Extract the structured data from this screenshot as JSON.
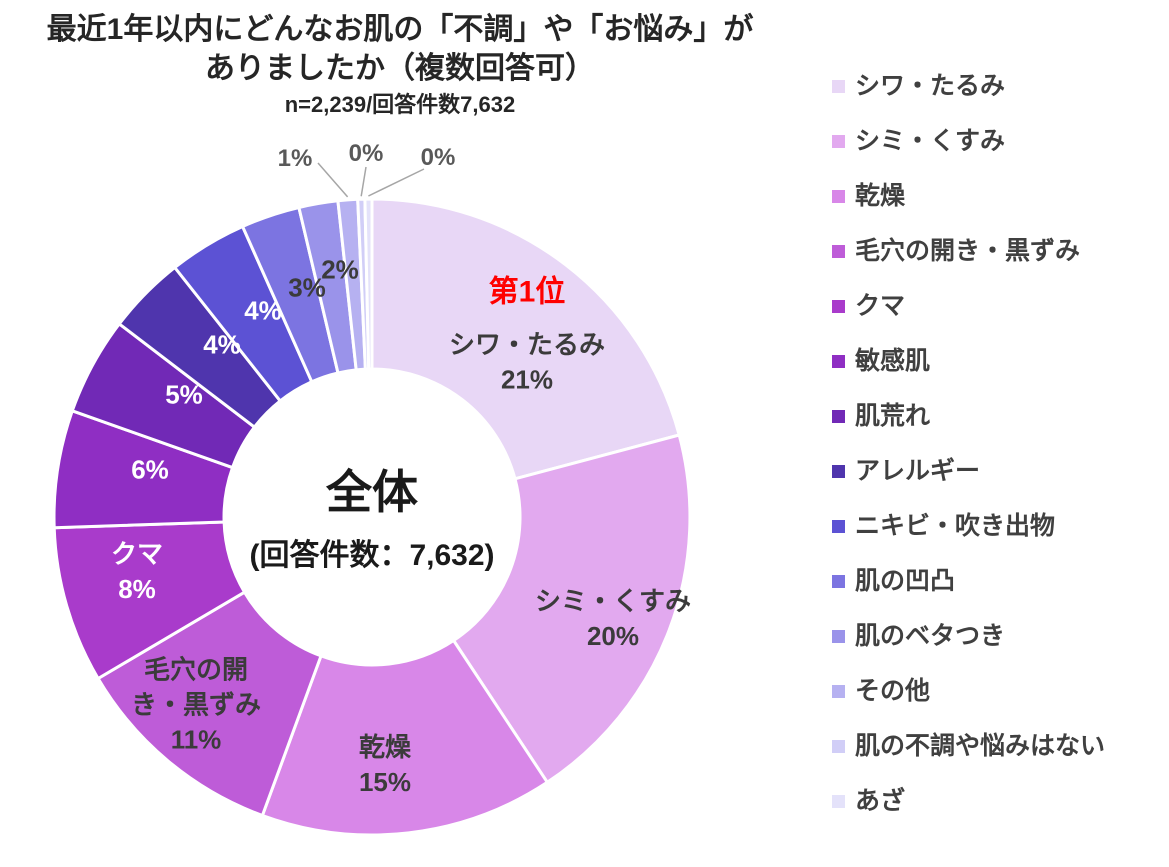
{
  "title": {
    "line1": "最近1年以内にどんなお肌の「不調」や「お悩み」が",
    "line2": "ありましたか（複数回答可）",
    "subtitle": "n=2,239/回答件数7,632"
  },
  "center_label": {
    "line1": "全体",
    "line2": "(回答件数：7,632)"
  },
  "rank_badge": "第1位",
  "colors": {
    "rank_badge": "#FF0000",
    "label_dark": "#3B3B3B",
    "label_light": "#FFFFFF",
    "outside_label": "#595959",
    "leader_line": "#A6A6A6",
    "title_text": "#262626",
    "legend_text": "#404040",
    "background": "#FFFFFF",
    "slice_border": "#FFFFFF"
  },
  "chart_data": {
    "type": "pie",
    "donut": true,
    "title": "最近1年以内にどんなお肌の「不調」や「お悩み」がありましたか（複数回答可）",
    "subtitle": "n=2,239/回答件数7,632",
    "n": 2239,
    "total_responses": 7632,
    "unit": "%",
    "start_angle": "top",
    "direction": "clockwise",
    "legend_position": "right",
    "center_text": [
      "全体",
      "(回答件数：7,632)"
    ],
    "rank1_annotation": "第1位",
    "categories": [
      "シワ・たるみ",
      "シミ・くすみ",
      "乾燥",
      "毛穴の開き・黒ずみ",
      "クマ",
      "敏感肌",
      "肌荒れ",
      "アレルギー",
      "ニキビ・吹き出物",
      "肌の凹凸",
      "肌のベタつき",
      "その他",
      "肌の不調や悩みはない",
      "あざ"
    ],
    "values": [
      21,
      20,
      15,
      11,
      8,
      6,
      5,
      4,
      4,
      3,
      2,
      1,
      0,
      0
    ],
    "colors": [
      "#E8D7F6",
      "#E2A9EF",
      "#D887E8",
      "#BE5CD8",
      "#A93BCB",
      "#8F2EC3",
      "#7129B6",
      "#4F35AD",
      "#5C52D4",
      "#7C74E1",
      "#9A93EA",
      "#B6B1F1",
      "#D1CEF7",
      "#E4E2FA"
    ]
  }
}
